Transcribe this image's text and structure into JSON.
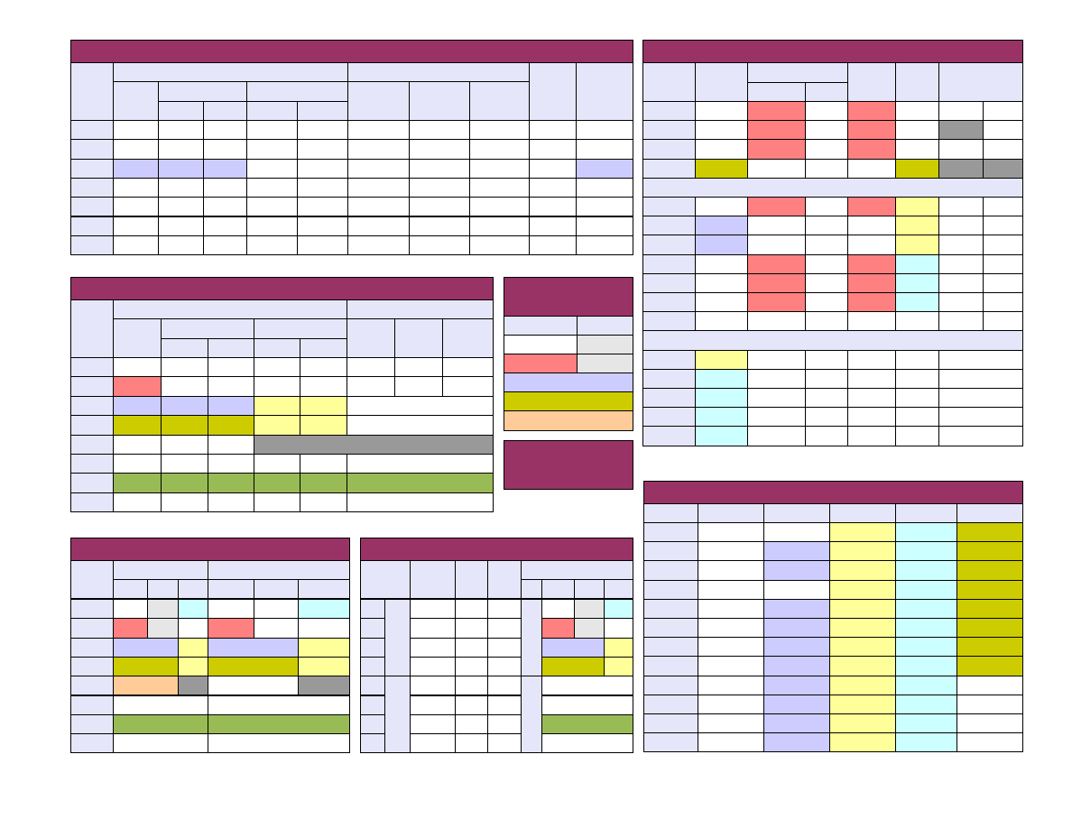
{
  "palette": {
    "panel_header": "#993366",
    "header_cell": "#e6e6fa",
    "white": "#ffffff",
    "pink": "#ff8080",
    "lavender": "#ccccff",
    "yellow": "#ffff99",
    "olive": "#cccc00",
    "gray": "#999999",
    "light_gray": "#e6e6e6",
    "cyan": "#ccffff",
    "peach": "#ffcc99",
    "green": "#99bb55"
  },
  "panels": [
    {
      "id": "top-left-table",
      "title": ""
    },
    {
      "id": "middle-left-table",
      "title": ""
    },
    {
      "id": "legend-box",
      "title": ""
    },
    {
      "id": "legend-footer",
      "title": ""
    },
    {
      "id": "bottom-left-table",
      "title": ""
    },
    {
      "id": "bottom-center-table",
      "title": ""
    },
    {
      "id": "top-right-table",
      "title": ""
    },
    {
      "id": "bottom-right-table",
      "title": ""
    }
  ]
}
